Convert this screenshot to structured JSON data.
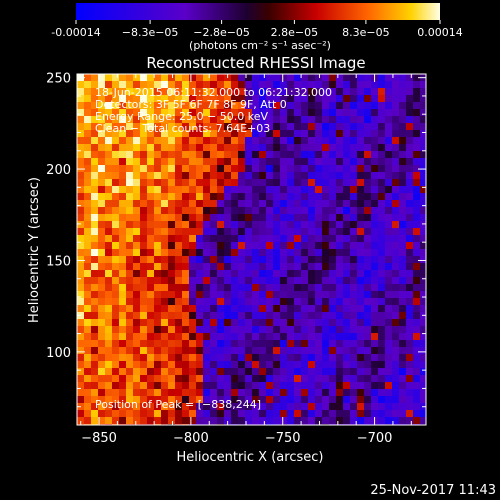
{
  "colorbar": {
    "tick_labels": [
      "-0.00014",
      "−8.3e−05",
      "−2.8e−05",
      "2.8e−05",
      "8.3e−05",
      "0.00014"
    ],
    "tick_values": [
      -0.00014,
      -8.3e-05,
      -2.8e-05,
      2.8e-05,
      8.3e-05,
      0.00014
    ],
    "range": [
      -0.00014,
      0.00014
    ],
    "unit": "(photons cm⁻² s⁻¹ asec⁻²)"
  },
  "chart_data": {
    "type": "heatmap",
    "title": "Reconstructed RHESSI Image",
    "xlabel": "Heliocentric X (arcsec)",
    "ylabel": "Heliocentric Y (arcsec)",
    "xlim": [
      -862,
      -672
    ],
    "ylim": [
      60,
      252
    ],
    "xticks": [
      -850,
      -800,
      -750,
      -700
    ],
    "yticks": [
      100,
      150,
      200,
      250
    ],
    "xtick_labels": [
      "−850",
      "−800",
      "−750",
      "−700"
    ],
    "ytick_labels": [
      "100",
      "150",
      "200",
      "250"
    ],
    "grid": false,
    "annotations": [
      "18-Jun-2015 06:11:32.000 to 06:21:32.000",
      "Detectors: 3F 5F 6F 7F 8F 9F, Att 0",
      "Energy Range: 25.0 − 50.0 keV",
      "Clean − Total counts: 7.64E+03"
    ],
    "peak_label": "Position of Peak = [−838,244]",
    "peak_position": [
      -838,
      244
    ]
  },
  "footer": {
    "timestamp": "25-Nov-2017 11:43"
  },
  "colors": {
    "background": "#000000",
    "foreground": "#ffffff"
  }
}
